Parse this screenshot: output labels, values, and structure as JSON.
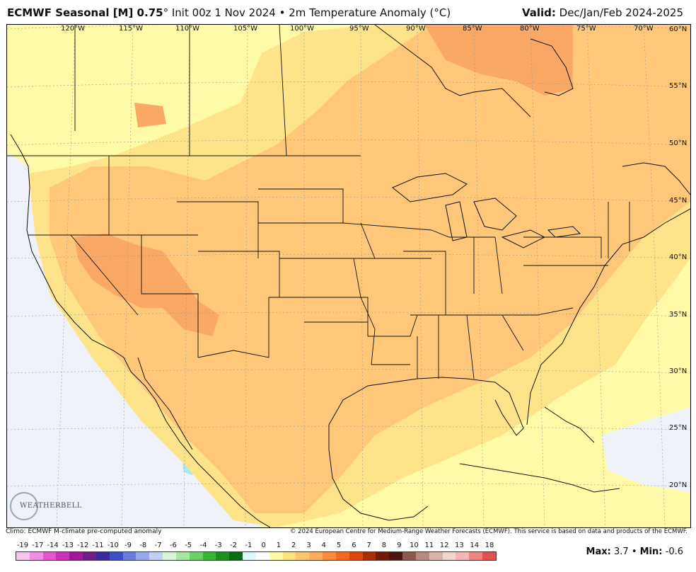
{
  "header": {
    "model": "ECMWF Seasonal [M] 0.75",
    "degree": "°",
    "details": "Init 00z 1 Nov 2024 • 2m Temperature Anomaly (°C)",
    "valid_label": "Valid:",
    "valid_value": "Dec/Jan/Feb 2024-2025"
  },
  "lon_labels": [
    "120°W",
    "115°W",
    "110°W",
    "105°W",
    "100°W",
    "95°W",
    "90°W",
    "85°W",
    "80°W",
    "75°W",
    "70°W"
  ],
  "lat_labels": [
    "60°N",
    "55°N",
    "50°N",
    "45°N",
    "40°N",
    "35°N",
    "30°N",
    "25°N",
    "20°N"
  ],
  "footer": {
    "climo": "Climo: ECMWF M-climate pre-computed anomaly",
    "copyright": "© 2024 European Centre for Medium-Range Weather Forecasts (ECMWF). This service is based on data and products of the ECMWF."
  },
  "scale": {
    "labels": [
      "-19",
      "-17",
      "-14",
      "-13",
      "-12",
      "-11",
      "-10",
      "-9",
      "-8",
      "-7",
      "-6",
      "-5",
      "-4",
      "-3",
      "-2",
      "-1",
      "0",
      "1",
      "2",
      "3",
      "4",
      "5",
      "6",
      "7",
      "8",
      "9",
      "10",
      "11",
      "12",
      "13",
      "14",
      "18"
    ],
    "colors": [
      "#f7c6ee",
      "#ef8fe0",
      "#e455d0",
      "#c832b8",
      "#9b1c96",
      "#6f1e84",
      "#3a2a9a",
      "#3f4fc4",
      "#6a7ddc",
      "#97a9ea",
      "#c3cff4",
      "#d7f5d8",
      "#a8e6a5",
      "#6fd06b",
      "#3db53a",
      "#1e8f20",
      "#0e6a14",
      "#dff7ff",
      "#ffffff",
      "#fffaa8",
      "#ffe17f",
      "#ffc672",
      "#ffad5e",
      "#ff8b3d",
      "#f26a1b",
      "#d9480f",
      "#a82d0a",
      "#6e1b08",
      "#4a1410",
      "#8a5a50",
      "#b58a80",
      "#d8b4ab",
      "#f0d6d0",
      "#f7b6b6",
      "#ef8686",
      "#e05353"
    ]
  },
  "stats": {
    "max_label": "Max:",
    "max_value": "3.7",
    "sep": "•",
    "min_label": "Min:",
    "min_value": "-0.6"
  },
  "logo": {
    "text": "WEATHERBELL"
  },
  "colors": {
    "anom_0_1": "#fffaa8",
    "anom_1_2": "#ffe38a",
    "anom_2_3": "#ffc77a",
    "anom_3_4": "#f9a865",
    "anom_neg": "#e9eef8",
    "anom_cold": "#a8e8f6"
  }
}
